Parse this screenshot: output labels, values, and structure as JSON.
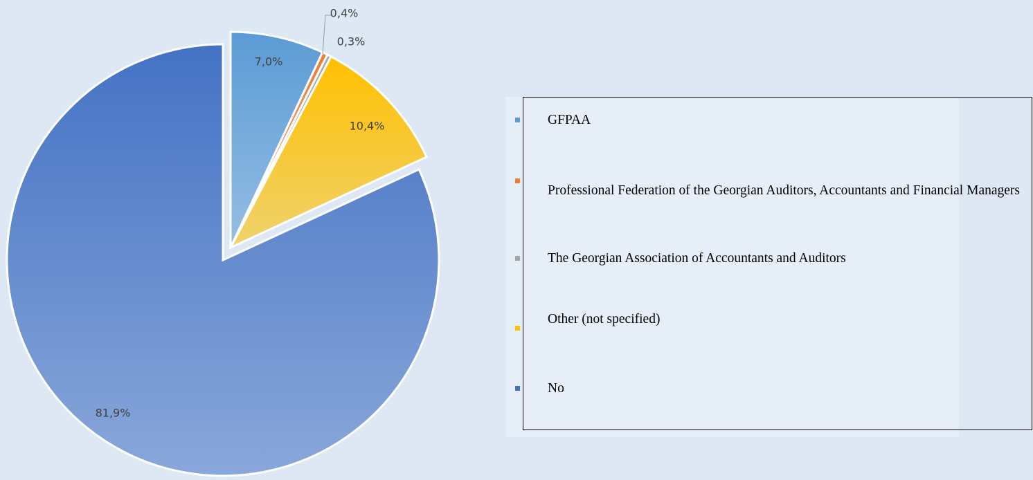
{
  "chart_data": {
    "type": "pie",
    "categories": [
      "GFPAA",
      "Professional Federation of the Georgian Auditors, Accountants and Financial Managers",
      "The Georgian Association of Accountants and Auditors",
      "Other (not specified)",
      "No"
    ],
    "values": [
      7.0,
      0.4,
      0.3,
      10.4,
      81.9
    ],
    "value_labels": [
      "7,0%",
      "0,4%",
      "0,3%",
      "10,4%",
      "81,9%"
    ],
    "colors": [
      "#5b9bd5",
      "#ed7d31",
      "#a5a5a5",
      "#ffc000",
      "#4472c4"
    ],
    "legend": "right"
  }
}
